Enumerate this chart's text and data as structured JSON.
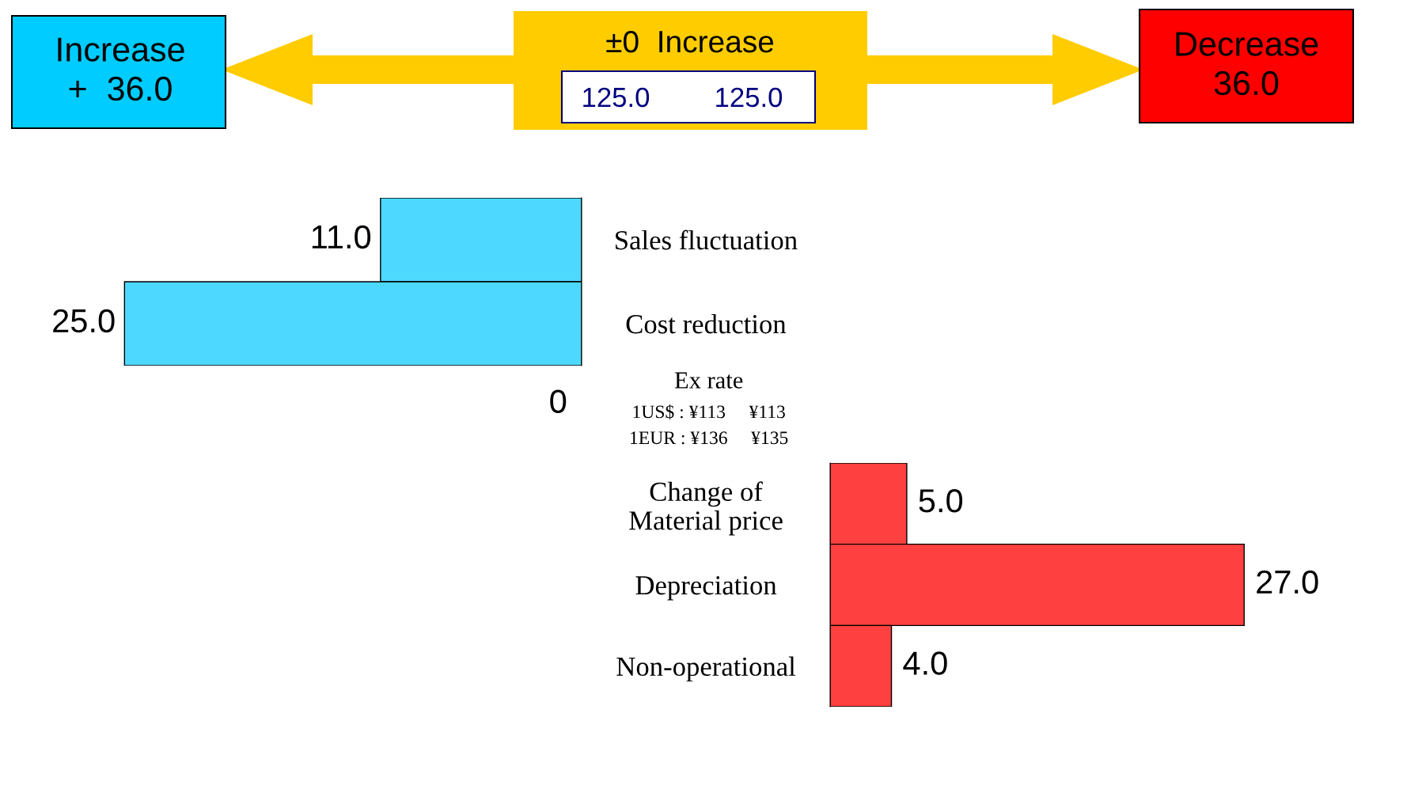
{
  "chart_data": [
    {
      "type": "other",
      "annotations": [
        "Increase\n+  36.0",
        "±0  Increase",
        "125.0",
        "125.0",
        "Decrease\n36.0"
      ]
    },
    {
      "type": "bar",
      "orientation": "horizontal",
      "categories": [
        "Sales fluctuation",
        "Cost reduction"
      ],
      "values": [
        11.0,
        25.0
      ],
      "value_labels": [
        "11.0",
        "25.0"
      ],
      "color": "#4dd9ff",
      "tick_labels": "y",
      "annotations": [
        "Ex rate",
        "1US$ : ¥113     ¥113",
        "1EUR : ¥136     ¥135",
        "0"
      ]
    },
    {
      "type": "bar",
      "orientation": "horizontal",
      "categories": [
        "Change of\nMaterial price",
        "Depreciation",
        "Non-operational"
      ],
      "values": [
        5.0,
        27.0,
        4.0
      ],
      "value_labels": [
        "5.0",
        "27.0",
        "4.0"
      ],
      "color": "#ff4040",
      "tick_labels": "y"
    }
  ]
}
